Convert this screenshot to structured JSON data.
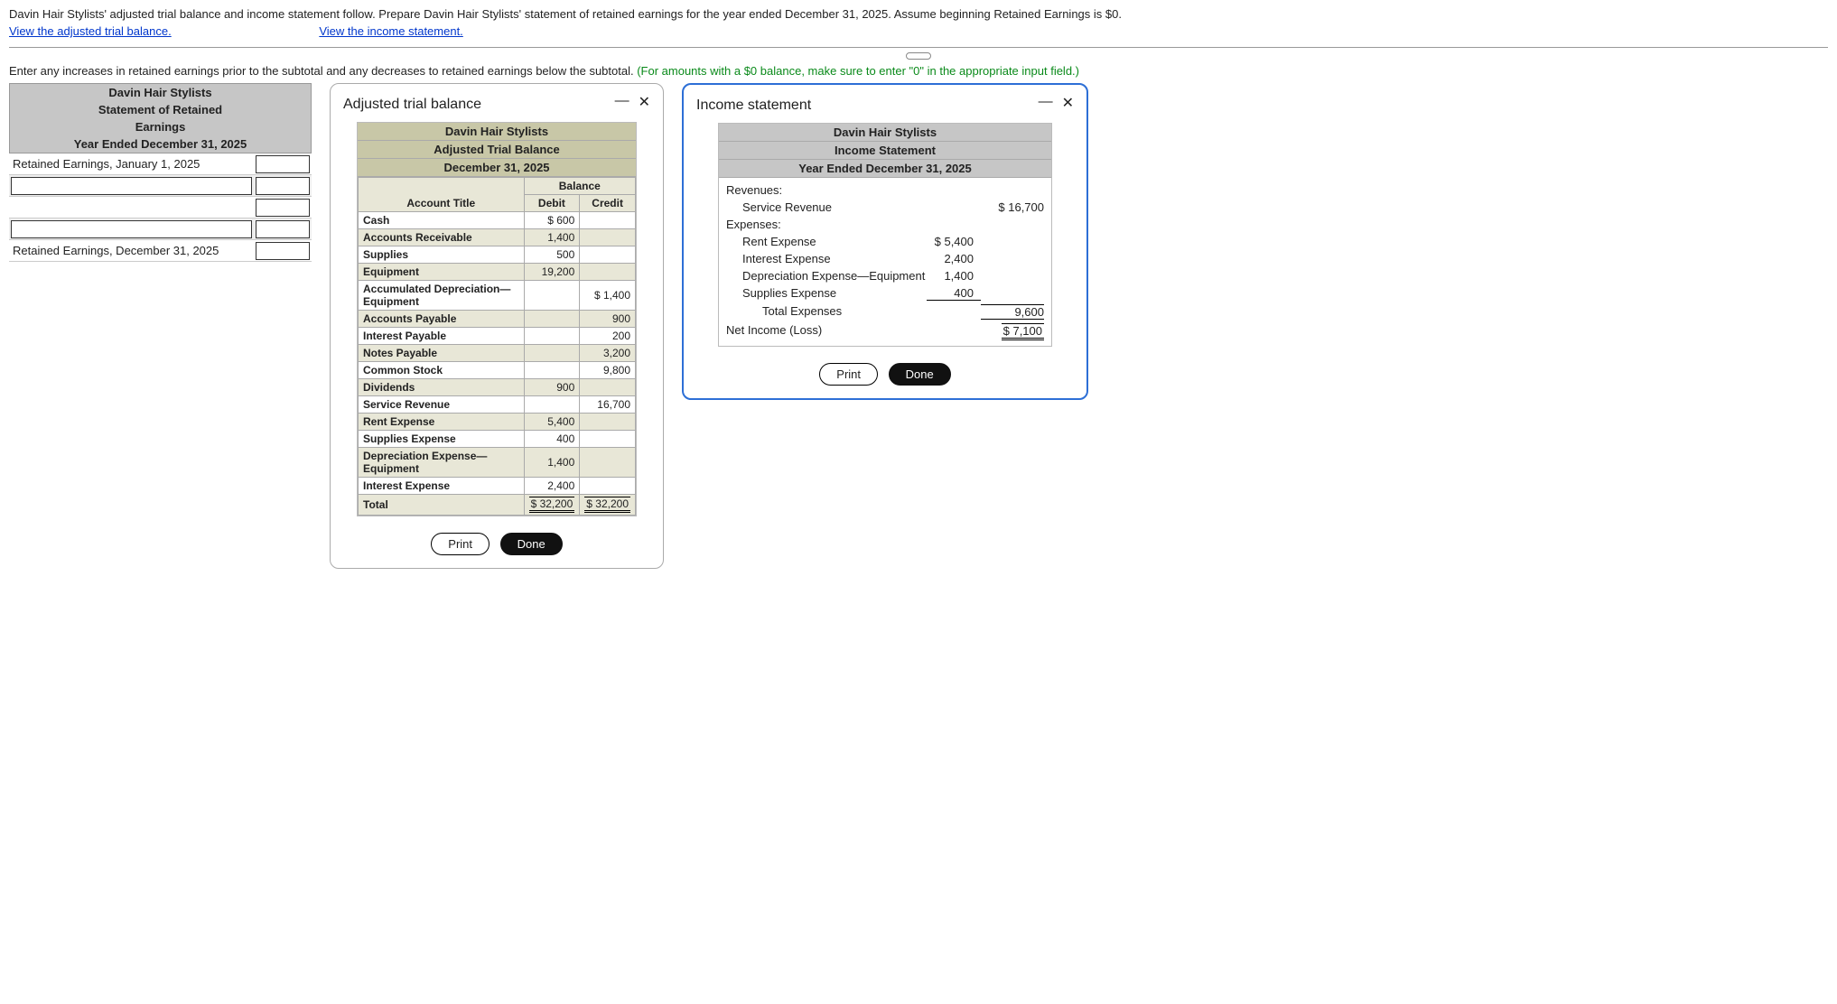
{
  "prompt": "Davin Hair Stylists' adjusted trial balance and income statement follow. Prepare Davin Hair Stylists' statement of retained earnings for the year ended December 31, 2025. Assume beginning Retained Earnings is $0.",
  "link_atb": "View the adjusted trial balance.",
  "link_is": "View the income statement.",
  "instruction_black": "Enter any increases in retained earnings prior to the subtotal and any decreases to retained earnings below the subtotal. ",
  "instruction_green": "(For amounts with a $0 balance, make sure to enter \"0\" in the appropriate input field.)",
  "ws": {
    "h1": "Davin Hair Stylists",
    "h2": "Statement of Retained",
    "h3": "Earnings",
    "h4": "Year Ended December 31, 2025",
    "row_begin": "Retained Earnings, January 1, 2025",
    "row_end": "Retained Earnings, December 31, 2025"
  },
  "atb": {
    "title": "Adjusted trial balance",
    "h1": "Davin Hair Stylists",
    "h2": "Adjusted Trial Balance",
    "h3": "December 31, 2025",
    "col_balance": "Balance",
    "col_acct": "Account Title",
    "col_debit": "Debit",
    "col_credit": "Credit",
    "rows": [
      {
        "acct": "Cash",
        "debit_prefix": "$",
        "debit": "600",
        "credit": ""
      },
      {
        "acct": "Accounts Receivable",
        "debit": "1,400",
        "credit": ""
      },
      {
        "acct": "Supplies",
        "debit": "500",
        "credit": ""
      },
      {
        "acct": "Equipment",
        "debit": "19,200",
        "credit": ""
      },
      {
        "acct": "Accumulated Depreciation—Equipment",
        "debit": "",
        "credit_prefix": "$",
        "credit": "1,400"
      },
      {
        "acct": "Accounts Payable",
        "debit": "",
        "credit": "900"
      },
      {
        "acct": "Interest Payable",
        "debit": "",
        "credit": "200"
      },
      {
        "acct": "Notes Payable",
        "debit": "",
        "credit": "3,200"
      },
      {
        "acct": "Common Stock",
        "debit": "",
        "credit": "9,800"
      },
      {
        "acct": "Dividends",
        "debit": "900",
        "credit": ""
      },
      {
        "acct": "Service Revenue",
        "debit": "",
        "credit": "16,700"
      },
      {
        "acct": "Rent Expense",
        "debit": "5,400",
        "credit": ""
      },
      {
        "acct": "Supplies Expense",
        "debit": "400",
        "credit": ""
      },
      {
        "acct": "Depreciation Expense—Equipment",
        "debit": "1,400",
        "credit": ""
      },
      {
        "acct": "Interest Expense",
        "debit": "2,400",
        "credit": ""
      }
    ],
    "total_label": "Total",
    "total_debit": "$ 32,200",
    "total_credit": "$ 32,200",
    "btn_print": "Print",
    "btn_done": "Done"
  },
  "is": {
    "title": "Income statement",
    "h1": "Davin Hair Stylists",
    "h2": "Income Statement",
    "h3": "Year Ended December 31, 2025",
    "revenues_label": "Revenues:",
    "svc_rev_label": "Service Revenue",
    "svc_rev_amt": "$   16,700",
    "expenses_label": "Expenses:",
    "exp": [
      {
        "label": "Rent Expense",
        "amt": "5,400",
        "prefix": "$"
      },
      {
        "label": "Interest Expense",
        "amt": "2,400",
        "prefix": ""
      },
      {
        "label": "Depreciation Expense—Equipment",
        "amt": "1,400",
        "prefix": ""
      },
      {
        "label": "Supplies Expense",
        "amt": "400",
        "prefix": ""
      }
    ],
    "total_exp_label": "Total Expenses",
    "total_exp_amt": "9,600",
    "net_label": "Net Income (Loss)",
    "net_amt": "$    7,100",
    "btn_print": "Print",
    "btn_done": "Done"
  }
}
